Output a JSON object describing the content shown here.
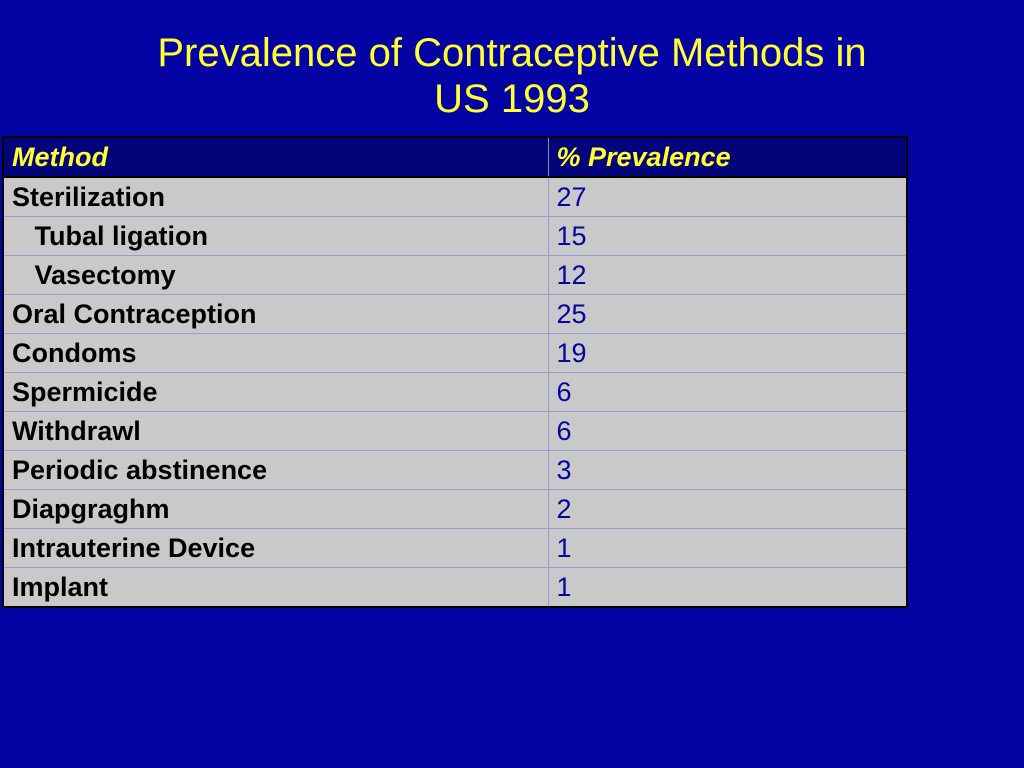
{
  "slide": {
    "title_line1": "Prevalence of Contraceptive Methods in",
    "title_line2": "US 1993"
  },
  "table": {
    "headers": [
      "Method",
      "% Prevalence"
    ],
    "rows": [
      {
        "method": "Sterilization",
        "value": "27"
      },
      {
        "method": "   Tubal ligation",
        "value": "15"
      },
      {
        "method": "   Vasectomy",
        "value": "12"
      },
      {
        "method": "Oral Contraception",
        "value": "25"
      },
      {
        "method": "Condoms",
        "value": "19"
      },
      {
        "method": "Spermicide",
        "value": "6"
      },
      {
        "method": "Withdrawl",
        "value": "6"
      },
      {
        "method": "Periodic abstinence",
        "value": "3"
      },
      {
        "method": "Diapgraghm",
        "value": "2"
      },
      {
        "method": "Intrauterine Device",
        "value": "1"
      },
      {
        "method": "Implant",
        "value": "1"
      }
    ]
  },
  "colors": {
    "background": "#0303a3",
    "title_text": "#ffff33",
    "header_bg": "#03037a",
    "cell_bg": "#c9c9c9",
    "value_text": "#0505a0"
  }
}
